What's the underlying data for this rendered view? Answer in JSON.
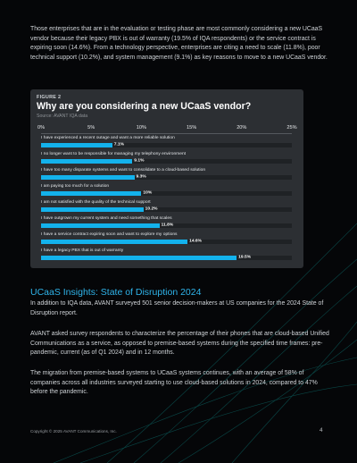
{
  "intro_paragraph": "Those enterprises that are in the evaluation or testing phase are most commonly considering a new UCaaS vendor because their legacy PBX is out of warranty (19.5% of IQA respondents) or the service contract is expiring soon (14.6%). From a technology perspective, enterprises are citing a need to scale (11.8%), poor technical support (10.2%), and system management (9.1%) as key reasons to move to a new UCaaS vendor.",
  "figure": {
    "label": "FIGURE 2",
    "title": "Why are you considering a new UCaaS vendor?",
    "source": "Source: AVANT IQA data"
  },
  "chart_data": {
    "type": "bar",
    "orientation": "horizontal",
    "title": "Why are you considering a new UCaaS vendor?",
    "xlim": [
      0,
      25
    ],
    "x_ticks": [
      "0%",
      "5%",
      "10%",
      "15%",
      "20%",
      "25%"
    ],
    "tick_values": [
      0,
      5,
      10,
      15,
      20,
      25
    ],
    "categories": [
      "I have experienced a recent outage and want a more reliable solution",
      "I no longer want to be responsible for managing my telephony environment",
      "I have too many disparate systems and want to consolidate to a cloud-based solution",
      "I am paying too much for a solution",
      "I am not satisfied with the quality of the technical support",
      "I have outgrown my current system and need something that scales",
      "I have a service contract expiring soon and want to explore my options",
      "I have a legacy PBX that is out of warranty"
    ],
    "values": [
      7.1,
      9.1,
      9.3,
      10,
      10.2,
      11.8,
      14.6,
      19.5
    ],
    "value_labels": [
      "7.1%",
      "9.1%",
      "9.3%",
      "10%",
      "10.2%",
      "11.8%",
      "14.6%",
      "19.5%"
    ],
    "bar_color": "#13b2ec",
    "grid": false
  },
  "section_title": "UCaaS Insights: State of Disruption 2024",
  "paragraphs": [
    "In addition to IQA data, AVANT surveyed 501 senior decision-makers at US companies for the 2024 State of Disruption report.",
    "AVANT asked survey respondents to characterize the percentage of their phones that are cloud-based Unified Communications as a service, as opposed to premise-based systems during the specified time frames: pre-pandemic, current (as of Q1 2024) and in 12 months.",
    "The migration from premise-based systems to UCaaS systems continues, with an average of 58% of companies across all industries surveyed starting to use cloud-based solutions in 2024, compared to 47% before the pandemic."
  ],
  "footer": {
    "copyright": "Copyright © 2025 AVANT Communications, Inc.",
    "page_number": "4"
  }
}
